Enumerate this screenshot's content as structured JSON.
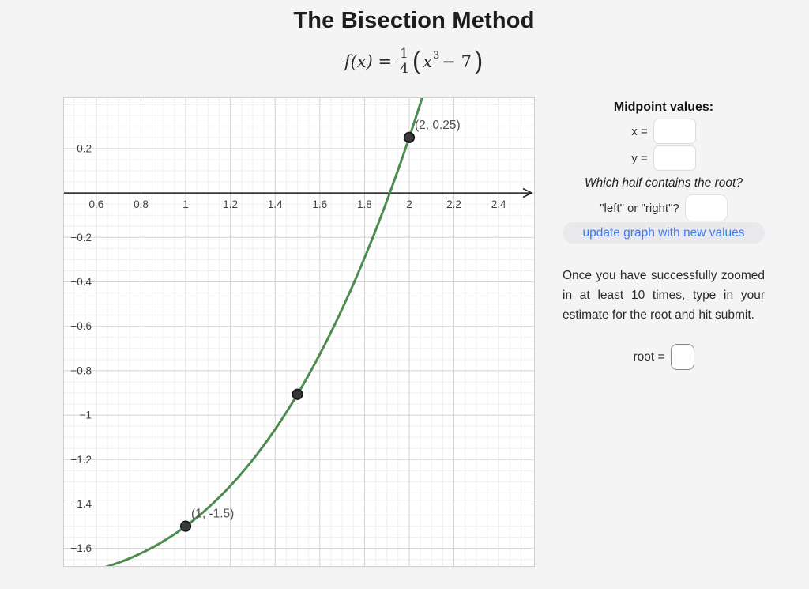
{
  "page": {
    "title": "The Bisection Method",
    "background_color": "#f5f4f5"
  },
  "formula": {
    "lhs": "f(x) =",
    "numerator": "1",
    "denominator": "4",
    "open_paren": "(",
    "variable": "x",
    "exponent": "3",
    "tail": " − 7",
    "close_paren": ")"
  },
  "panel": {
    "heading": "Midpoint values:",
    "x_label": "x =",
    "x_value": "",
    "y_label": "y =",
    "y_value": "",
    "question": "Which half contains the root?",
    "half_label": "\"left\" or \"right\"?",
    "half_value": "",
    "update_button_label": "update graph with new values",
    "accent_color": "#3b7cf5",
    "instructions": "Once you have successfully zoomed in at least 10 times, type in your estimate for the root and hit submit.",
    "root_label": "root =",
    "root_value": ""
  },
  "chart_data": {
    "type": "line",
    "title": "",
    "function_label": "f(x) = (1/4)(x^3 - 7)",
    "curve": {
      "kind": "cubic",
      "a": 0.25,
      "d": -1.75
    },
    "xlim": [
      0.452,
      2.562
    ],
    "ylim": [
      -1.683,
      0.431
    ],
    "x_ticks": [
      0.6,
      0.8,
      1,
      1.2,
      1.4,
      1.6,
      1.8,
      2,
      2.2,
      2.4
    ],
    "x_tick_labels": [
      "0.6",
      "0.8",
      "1",
      "1.2",
      "1.4",
      "1.6",
      "1.8",
      "2",
      "2.2",
      "2.4"
    ],
    "y_ticks": [
      0.2,
      -0.2,
      -0.4,
      -0.6,
      -0.8,
      -1,
      -1.2,
      -1.4,
      -1.6
    ],
    "y_tick_labels": [
      "0.2",
      "−0.2",
      "−0.4",
      "−0.6",
      "−0.8",
      "−1",
      "−1.2",
      "−1.4",
      "−1.6"
    ],
    "minor_grid_step": 0.05,
    "major_grid_step": 0.2,
    "grid": true,
    "legend": false,
    "points": [
      {
        "x": 1,
        "y": -1.5,
        "label": "(1, -1.5)"
      },
      {
        "x": 1.5,
        "y": -0.90625,
        "label": ""
      },
      {
        "x": 2,
        "y": 0.25,
        "label": "(2, 0.25)"
      }
    ],
    "colors": {
      "curve": "#4b8c4f",
      "point_fill": "#39393b",
      "point_stroke": "#161616",
      "axis": "#1b1b1b",
      "grid_minor": "#efeff0",
      "grid_major": "#d2d2d5",
      "tick_text": "#3f3f3f",
      "point_label": "#4f4f4f",
      "plot_bg": "#ffffff",
      "plot_border": "#cfcfcf"
    }
  }
}
